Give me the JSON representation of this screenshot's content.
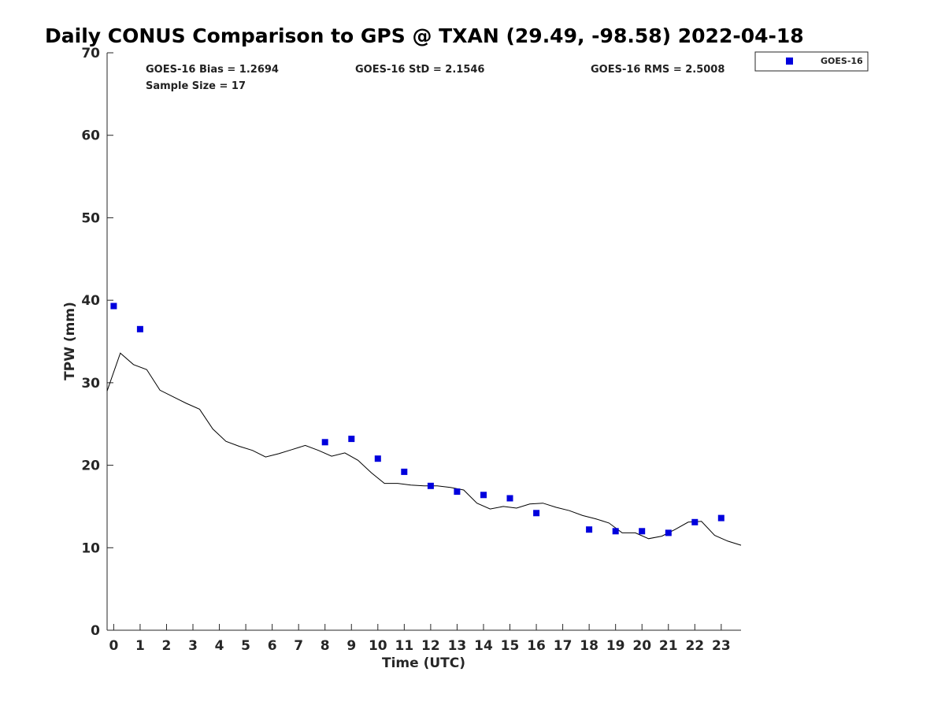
{
  "chart_data": {
    "type": "scatter",
    "title": "Daily CONUS Comparison to GPS @ TXAN (29.49, -98.58) 2022-04-18",
    "xlabel": "Time (UTC)",
    "ylabel": "TPW (mm)",
    "xlim": [
      -0.25,
      23.75
    ],
    "ylim": [
      0,
      70
    ],
    "x_ticks": [
      0,
      1,
      2,
      3,
      4,
      5,
      6,
      7,
      8,
      9,
      10,
      11,
      12,
      13,
      14,
      15,
      16,
      17,
      18,
      19,
      20,
      21,
      22,
      23
    ],
    "y_ticks": [
      0,
      10,
      20,
      30,
      40,
      50,
      60,
      70
    ],
    "grid": false,
    "legend_position": "top-right outside",
    "stats": {
      "bias": "GOES-16 Bias = 1.2694",
      "std": "GOES-16 StD = 2.1546",
      "rms": "GOES-16 RMS = 2.5008",
      "sample": "Sample Size = 17"
    },
    "series": [
      {
        "name": "GOES-16",
        "kind": "scatter",
        "marker": "square",
        "color": "#0000dd",
        "points": [
          [
            0,
            39.3
          ],
          [
            1,
            36.5
          ],
          [
            8,
            22.8
          ],
          [
            9,
            23.2
          ],
          [
            10,
            20.8
          ],
          [
            11,
            19.2
          ],
          [
            12,
            17.5
          ],
          [
            13,
            16.8
          ],
          [
            14,
            16.4
          ],
          [
            15,
            16.0
          ],
          [
            16,
            14.2
          ],
          [
            18,
            12.2
          ],
          [
            19,
            12.0
          ],
          [
            20,
            12.0
          ],
          [
            21,
            11.8
          ],
          [
            22,
            13.1
          ],
          [
            23,
            13.6
          ]
        ]
      },
      {
        "kind": "line",
        "color": "#000000",
        "points": [
          [
            -0.25,
            29.0
          ],
          [
            0.25,
            33.6
          ],
          [
            0.75,
            32.2
          ],
          [
            1.25,
            31.6
          ],
          [
            1.75,
            29.1
          ],
          [
            2.25,
            28.3
          ],
          [
            2.75,
            27.5
          ],
          [
            3.25,
            26.8
          ],
          [
            3.75,
            24.4
          ],
          [
            4.25,
            22.9
          ],
          [
            4.75,
            22.3
          ],
          [
            5.25,
            21.8
          ],
          [
            5.75,
            21.0
          ],
          [
            6.25,
            21.4
          ],
          [
            6.75,
            21.9
          ],
          [
            7.25,
            22.4
          ],
          [
            7.75,
            21.8
          ],
          [
            8.25,
            21.1
          ],
          [
            8.75,
            21.5
          ],
          [
            9.25,
            20.6
          ],
          [
            9.75,
            19.1
          ],
          [
            10.25,
            17.8
          ],
          [
            10.75,
            17.8
          ],
          [
            11.25,
            17.6
          ],
          [
            11.75,
            17.5
          ],
          [
            12.25,
            17.5
          ],
          [
            12.75,
            17.3
          ],
          [
            13.25,
            17.0
          ],
          [
            13.75,
            15.4
          ],
          [
            14.25,
            14.7
          ],
          [
            14.75,
            15.0
          ],
          [
            15.25,
            14.8
          ],
          [
            15.75,
            15.3
          ],
          [
            16.25,
            15.4
          ],
          [
            16.75,
            14.9
          ],
          [
            17.25,
            14.5
          ],
          [
            17.75,
            13.9
          ],
          [
            18.25,
            13.5
          ],
          [
            18.75,
            13.0
          ],
          [
            19.25,
            11.8
          ],
          [
            19.75,
            11.8
          ],
          [
            20.25,
            11.1
          ],
          [
            20.75,
            11.4
          ],
          [
            21.25,
            12.2
          ],
          [
            21.75,
            13.1
          ],
          [
            22.25,
            13.2
          ],
          [
            22.75,
            11.5
          ],
          [
            23.25,
            10.8
          ],
          [
            23.75,
            10.3
          ]
        ]
      }
    ]
  }
}
